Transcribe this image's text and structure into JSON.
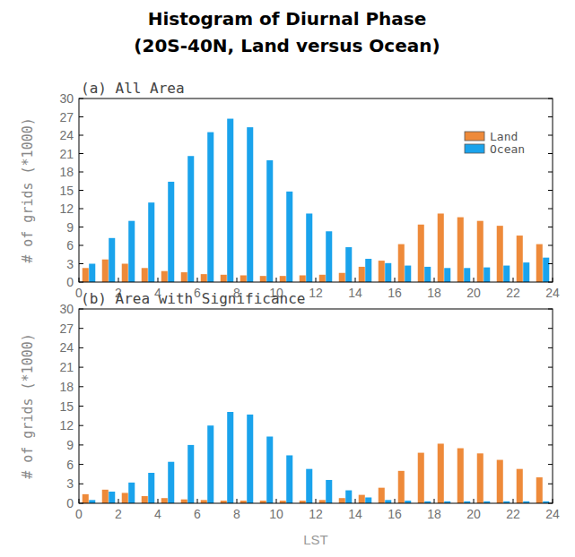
{
  "title": "Histogram of Diurnal Phase",
  "subtitle": "(20S-40N, Land versus Ocean)",
  "chart_data": [
    {
      "type": "bar",
      "title": "(a) All Area",
      "ylabel": "# of grids (*1000)",
      "x": [
        0.5,
        1.5,
        2.5,
        3.5,
        4.5,
        5.5,
        6.5,
        7.5,
        8.5,
        9.5,
        10.5,
        11.5,
        12.5,
        13.5,
        14.5,
        15.5,
        16.5,
        17.5,
        18.5,
        19.5,
        20.5,
        21.5,
        22.5,
        23.5
      ],
      "xlim": [
        0,
        24
      ],
      "xticks": [
        0,
        2,
        4,
        6,
        8,
        10,
        12,
        14,
        16,
        18,
        20,
        22,
        24
      ],
      "ylim": [
        0,
        30
      ],
      "yticks": [
        0,
        3,
        6,
        9,
        12,
        15,
        18,
        21,
        24,
        27,
        30
      ],
      "legend": "upper right",
      "grid": false,
      "series": [
        {
          "name": "Land",
          "color": "#ee8a3a",
          "values": [
            2.3,
            3.7,
            3.0,
            2.3,
            1.8,
            1.6,
            1.3,
            1.2,
            1.1,
            1.0,
            1.0,
            1.1,
            1.2,
            1.5,
            2.5,
            3.5,
            6.2,
            9.4,
            11.2,
            10.6,
            10.0,
            9.2,
            7.6,
            6.2
          ]
        },
        {
          "name": "Ocean",
          "color": "#1aa3ec",
          "values": [
            3.0,
            7.2,
            10.0,
            13.0,
            16.4,
            20.6,
            24.5,
            26.7,
            25.3,
            19.9,
            14.8,
            11.2,
            8.3,
            5.7,
            3.8,
            3.1,
            2.7,
            2.5,
            2.3,
            2.3,
            2.4,
            2.7,
            3.2,
            4.0
          ]
        }
      ]
    },
    {
      "type": "bar",
      "title": "(b) Area with Significance",
      "ylabel": "# of grids (*1000)",
      "xlabel": "LST",
      "x": [
        0.5,
        1.5,
        2.5,
        3.5,
        4.5,
        5.5,
        6.5,
        7.5,
        8.5,
        9.5,
        10.5,
        11.5,
        12.5,
        13.5,
        14.5,
        15.5,
        16.5,
        17.5,
        18.5,
        19.5,
        20.5,
        21.5,
        22.5,
        23.5
      ],
      "xlim": [
        0,
        24
      ],
      "xticks": [
        0,
        2,
        4,
        6,
        8,
        10,
        12,
        14,
        16,
        18,
        20,
        22,
        24
      ],
      "ylim": [
        0,
        30
      ],
      "yticks": [
        0,
        3,
        6,
        9,
        12,
        15,
        18,
        21,
        24,
        27,
        30
      ],
      "grid": false,
      "series": [
        {
          "name": "Land",
          "color": "#ee8a3a",
          "values": [
            1.4,
            2.1,
            1.6,
            1.1,
            0.8,
            0.6,
            0.5,
            0.4,
            0.4,
            0.4,
            0.4,
            0.4,
            0.5,
            0.8,
            1.3,
            2.4,
            5.0,
            7.8,
            9.2,
            8.5,
            7.7,
            6.7,
            5.3,
            4.0
          ]
        },
        {
          "name": "Ocean",
          "color": "#1aa3ec",
          "values": [
            0.5,
            1.8,
            3.2,
            4.7,
            6.4,
            9.0,
            12.0,
            14.1,
            13.7,
            10.3,
            7.4,
            5.3,
            3.6,
            2.0,
            0.9,
            0.5,
            0.4,
            0.3,
            0.3,
            0.3,
            0.3,
            0.3,
            0.3,
            0.3
          ]
        }
      ]
    }
  ]
}
